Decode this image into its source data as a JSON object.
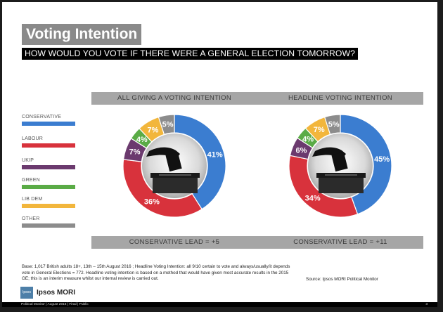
{
  "title": "Voting Intention",
  "question": "HOW WOULD YOU VOTE IF THERE WERE A GENERAL ELECTION TOMORROW?",
  "legend": [
    {
      "label": "CONSERVATIVE",
      "color": "#3b7dd0"
    },
    {
      "label": "LABOUR",
      "color": "#d8323c"
    },
    {
      "label": "UKIP",
      "color": "#6b3a6e"
    },
    {
      "label": "GREEN",
      "color": "#5aab46"
    },
    {
      "label": "LIB DEM",
      "color": "#f2b63c"
    },
    {
      "label": "OTHER",
      "color": "#8c8c8c"
    }
  ],
  "chart_data": [
    {
      "type": "pie",
      "title": "ALL GIVING A VOTING INTENTION",
      "categories": [
        "CONSERVATIVE",
        "LABOUR",
        "UKIP",
        "GREEN",
        "LIB DEM",
        "OTHER"
      ],
      "values": [
        41,
        36,
        7,
        4,
        7,
        5
      ],
      "labels": [
        "41%",
        "36%",
        "7%",
        "4%",
        "7%",
        "5%"
      ],
      "footer": "CONSERVATIVE LEAD = +5"
    },
    {
      "type": "pie",
      "title": "HEADLINE VOTING INTENTION",
      "categories": [
        "CONSERVATIVE",
        "LABOUR",
        "UKIP",
        "GREEN",
        "LIB DEM",
        "OTHER"
      ],
      "values": [
        45,
        34,
        6,
        4,
        7,
        5
      ],
      "labels": [
        "45%",
        "34%",
        "6%",
        "4%",
        "7%",
        "5%"
      ],
      "footer": "CONSERVATIVE LEAD = +11"
    }
  ],
  "footnote": "Base: 1,017 British adults 18+, 13th – 15th August 2016 ; Headline Voting Intention: all 9/10 certain to vote and always/usually/it depends vote in General Elections = 772. Headline voting intention is based on a method that would have given most accurate results in the 2015 GE; this is an interim measure whilst our internal review is carried out.",
  "source": "Source: Ipsos MORI Political Monitor",
  "logo_text": "Ipsos MORI",
  "logo_box_text": "Ipsos",
  "bottom_bar": "Political Monitor | August 2016 | Final | Public",
  "page_number": "3"
}
